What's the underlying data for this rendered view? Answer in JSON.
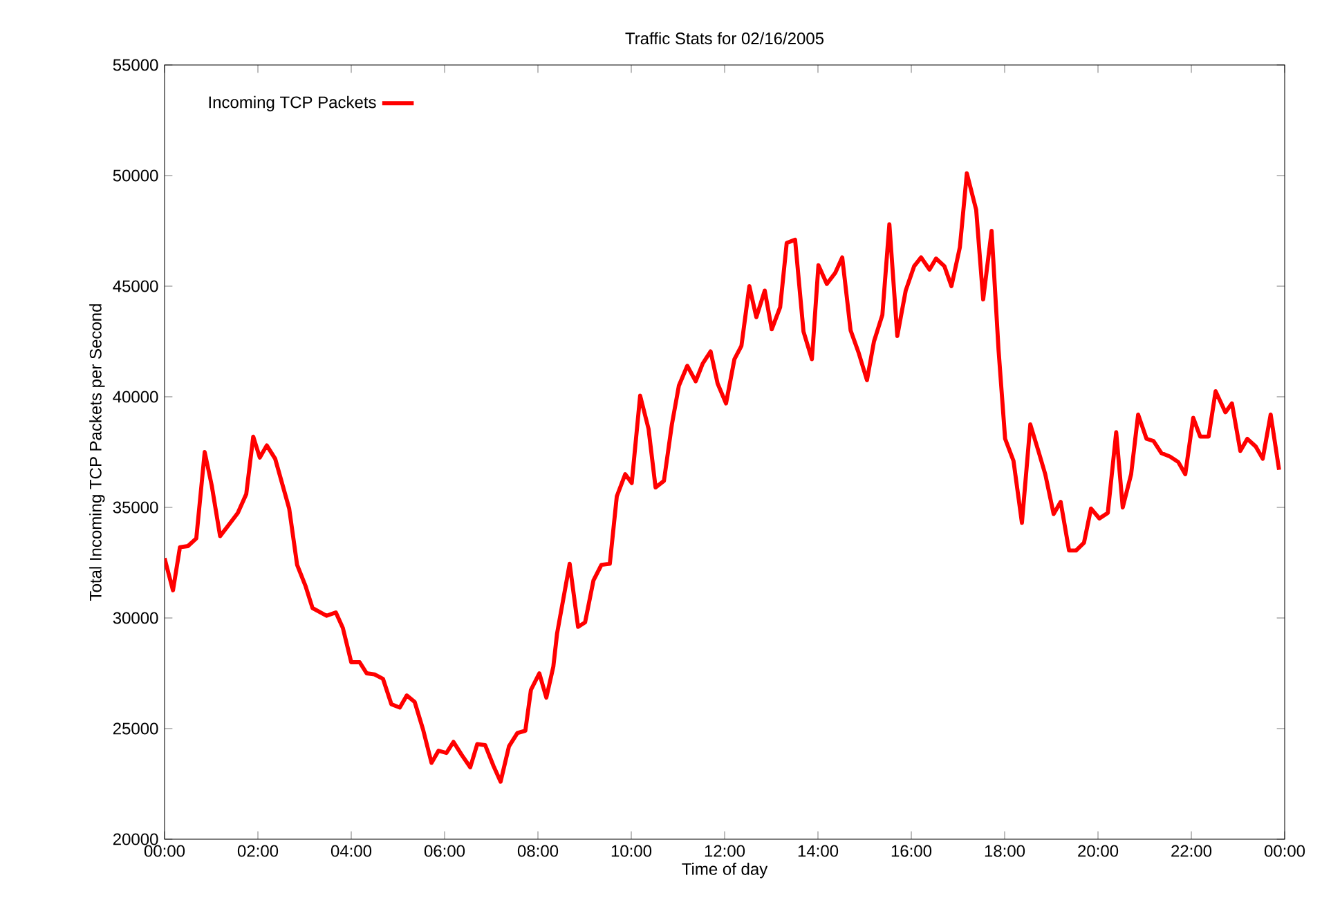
{
  "chart_data": {
    "type": "line",
    "title": "Traffic Stats for 02/16/2005",
    "xlabel": "Time of day",
    "ylabel": "Total Incoming TCP Packets per Second",
    "xlim": [
      0,
      24
    ],
    "xticks": [
      {
        "value": 0,
        "label": "00:00"
      },
      {
        "value": 2,
        "label": "02:00"
      },
      {
        "value": 4,
        "label": "04:00"
      },
      {
        "value": 6,
        "label": "06:00"
      },
      {
        "value": 8,
        "label": "08:00"
      },
      {
        "value": 10,
        "label": "10:00"
      },
      {
        "value": 12,
        "label": "12:00"
      },
      {
        "value": 14,
        "label": "14:00"
      },
      {
        "value": 16,
        "label": "16:00"
      },
      {
        "value": 18,
        "label": "18:00"
      },
      {
        "value": 20,
        "label": "20:00"
      },
      {
        "value": 22,
        "label": "22:00"
      },
      {
        "value": 24,
        "label": "00:00"
      }
    ],
    "ylim": [
      20000,
      55000
    ],
    "yticks": [
      20000,
      25000,
      30000,
      35000,
      40000,
      45000,
      50000,
      55000
    ],
    "legend": "top left",
    "grid": false,
    "series": [
      {
        "name": "Incoming TCP Packets",
        "color": "#ff0000",
        "x": [
          0,
          0.18,
          0.33,
          0.5,
          0.68,
          0.86,
          1.01,
          1.19,
          1.39,
          1.57,
          1.75,
          1.9,
          2.04,
          2.19,
          2.37,
          2.67,
          2.84,
          3.02,
          3.17,
          3.47,
          3.67,
          3.82,
          4.0,
          4.18,
          4.33,
          4.5,
          4.68,
          4.86,
          5.04,
          5.19,
          5.36,
          5.54,
          5.72,
          5.87,
          6.04,
          6.19,
          6.37,
          6.55,
          6.7,
          6.87,
          7.05,
          7.2,
          7.38,
          7.56,
          7.73,
          7.85,
          8.03,
          8.18,
          8.33,
          8.41,
          8.68,
          8.86,
          9.01,
          9.19,
          9.36,
          9.54,
          9.69,
          9.87,
          10.01,
          10.19,
          10.37,
          10.52,
          10.7,
          10.87,
          11.02,
          11.2,
          11.38,
          11.53,
          11.7,
          11.85,
          12.03,
          12.21,
          12.36,
          12.53,
          12.68,
          12.86,
          13.01,
          13.19,
          13.33,
          13.51,
          13.69,
          13.87,
          14.01,
          14.19,
          14.37,
          14.52,
          14.7,
          14.87,
          15.05,
          15.2,
          15.38,
          15.53,
          15.7,
          15.88,
          16.06,
          16.21,
          16.39,
          16.53,
          16.71,
          16.86,
          17.04,
          17.19,
          17.39,
          17.54,
          17.72,
          17.87,
          18.01,
          18.19,
          18.37,
          18.55,
          18.73,
          18.87,
          19.05,
          19.2,
          19.38,
          19.53,
          19.7,
          19.85,
          20.03,
          20.21,
          20.39,
          20.53,
          20.71,
          20.86,
          21.04,
          21.19,
          21.36,
          21.54,
          21.72,
          21.87,
          22.04,
          22.19,
          22.37,
          22.52,
          22.73,
          22.87,
          23.05,
          23.2,
          23.38,
          23.53,
          23.7,
          23.88
        ],
        "values": [
          32700,
          31250,
          33200,
          33250,
          33600,
          37500,
          36000,
          33700,
          34250,
          34750,
          35600,
          38200,
          37250,
          37800,
          37200,
          34950,
          32400,
          31450,
          30450,
          30100,
          30250,
          29550,
          28000,
          28000,
          27500,
          27450,
          27250,
          26100,
          25950,
          26500,
          26200,
          24950,
          23450,
          24000,
          23900,
          24400,
          23800,
          23250,
          24300,
          24250,
          23300,
          22600,
          24200,
          24800,
          24900,
          26750,
          27500,
          26400,
          27800,
          29300,
          32450,
          29600,
          29800,
          31700,
          32400,
          32450,
          35500,
          36500,
          36100,
          40050,
          38550,
          35900,
          36200,
          38750,
          40500,
          41400,
          40700,
          41500,
          42050,
          40600,
          39700,
          41700,
          42300,
          45000,
          43600,
          44800,
          43050,
          44050,
          46950,
          47100,
          42950,
          41700,
          45950,
          45100,
          45600,
          46300,
          43000,
          42000,
          40750,
          42500,
          43700,
          47800,
          42750,
          44800,
          45900,
          46300,
          45750,
          46250,
          45900,
          45000,
          46750,
          50100,
          48450,
          44400,
          47500,
          42100,
          38100,
          37100,
          34300,
          38750,
          37500,
          36500,
          34700,
          35250,
          33050,
          33050,
          33400,
          34950,
          34500,
          34750,
          38400,
          35000,
          36500,
          39200,
          38100,
          38000,
          37450,
          37300,
          37050,
          36500,
          39050,
          38200,
          38200,
          40250,
          39300,
          39700,
          37550,
          38100,
          37750,
          37200,
          39200,
          36700
        ]
      }
    ]
  }
}
